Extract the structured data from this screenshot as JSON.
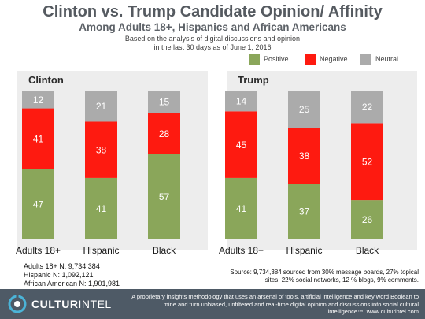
{
  "header": {
    "title": "Clinton vs. Trump Candidate Opinion/ Affinity",
    "subtitle": "Among Adults 18+, Hispanics and African Americans",
    "note_line1": "Based on the analysis of digital discussions and opinion",
    "note_line2": "in the last 30 days as of June 1, 2016"
  },
  "legend": [
    {
      "label": "Positive",
      "color": "#8aa65a"
    },
    {
      "label": "Negative",
      "color": "#fe1a10"
    },
    {
      "label": "Neutral",
      "color": "#ababab"
    }
  ],
  "colors": {
    "Positive": "#8aa65a",
    "Negative": "#fe1a10",
    "Neutral": "#ababab",
    "panel_bg": "#ededed",
    "footer": "#4e5a66",
    "logo_accent": "#4bb4d8"
  },
  "chart_data": [
    {
      "type": "bar",
      "stacked": true,
      "title": "Clinton",
      "categories": [
        "Adults 18+",
        "Hispanic",
        "Black"
      ],
      "series": [
        {
          "name": "Positive",
          "values": [
            47,
            41,
            57
          ]
        },
        {
          "name": "Negative",
          "values": [
            41,
            38,
            28
          ]
        },
        {
          "name": "Neutral",
          "values": [
            12,
            21,
            15
          ]
        }
      ],
      "ylim": [
        0,
        100
      ],
      "grid": false,
      "legend_position": "top-right"
    },
    {
      "type": "bar",
      "stacked": true,
      "title": "Trump",
      "categories": [
        "Adults 18+",
        "Hispanic",
        "Black"
      ],
      "series": [
        {
          "name": "Positive",
          "values": [
            41,
            37,
            26
          ]
        },
        {
          "name": "Negative",
          "values": [
            45,
            38,
            52
          ]
        },
        {
          "name": "Neutral",
          "values": [
            14,
            25,
            22
          ]
        }
      ],
      "ylim": [
        0,
        100
      ],
      "grid": false,
      "legend_position": "top-right"
    }
  ],
  "footnotes": {
    "adults": "Adults 18+ N:  9,734,384",
    "hispanic": "Hispanic N: 1,092,121",
    "african_american": "African American N: 1,901,981"
  },
  "source": "Source: 9,734,384 sourced from 30% message boards,  27% topical sites, 22% social networks, 12 % blogs,  9% comments.",
  "footer": {
    "logo_part1": "CULTUR",
    "logo_part2": "INTEL",
    "text": "A proprietary insights methodology that uses an arsenal of tools, artificial intelligence and key word Boolean to mine and turn unbiased, unfiltered and real-time digital opinion and discussions into social cultural intelligence™. www.culturintel.com"
  }
}
